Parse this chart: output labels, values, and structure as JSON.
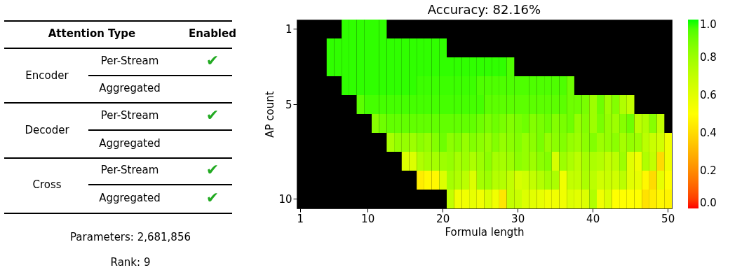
{
  "chart_data": [
    {
      "type": "other",
      "annotations": [
        "Attention Type",
        "Enabled",
        "Encoder",
        "Per-Stream",
        "✔",
        "Aggregated",
        "Decoder",
        "Per-Stream",
        "✔",
        "Aggregated",
        "Cross",
        "Per-Stream",
        "✔",
        "Aggregated",
        "✔",
        "Parameters: 2,681,856",
        "Rank: 9"
      ]
    },
    {
      "type": "heatmap",
      "title": "Accuracy: 82.16%",
      "xlabel": "Formula length",
      "ylabel": "AP count",
      "categories": [
        "1",
        null,
        null,
        null,
        null,
        null,
        null,
        null,
        null,
        "10",
        null,
        null,
        null,
        null,
        null,
        null,
        null,
        null,
        null,
        "20",
        null,
        null,
        null,
        null,
        null,
        null,
        null,
        null,
        null,
        "30",
        null,
        null,
        null,
        null,
        null,
        null,
        null,
        null,
        null,
        "40",
        null,
        null,
        null,
        null,
        null,
        null,
        null,
        null,
        null,
        "50"
      ],
      "y_categories": [
        "1",
        null,
        null,
        null,
        "5",
        null,
        null,
        null,
        null,
        "10"
      ],
      "clim": [
        0,
        1
      ],
      "cticks": [
        {
          "value": 0,
          "label": "0.0"
        },
        {
          "value": 0.2,
          "label": "0.2"
        },
        {
          "value": 0.4,
          "label": "0.4"
        },
        {
          "value": 0.6,
          "label": "0.6"
        },
        {
          "value": 0.8,
          "label": "0.8"
        },
        {
          "value": 1,
          "label": "1.0"
        }
      ],
      "cells": [
        [
          null,
          null,
          null,
          null,
          null,
          null,
          0.98,
          0.98,
          0.98,
          0.98,
          0.98,
          0.98,
          null,
          null,
          null,
          null,
          null,
          null,
          null,
          null,
          null,
          null,
          null,
          null,
          null,
          null,
          null,
          null,
          null,
          null,
          null,
          null,
          null,
          null,
          null,
          null,
          null,
          null,
          null,
          null,
          null,
          null,
          null,
          null,
          null,
          null,
          null,
          null,
          null,
          null
        ],
        [
          null,
          null,
          null,
          null,
          0.98,
          0.98,
          0.98,
          0.98,
          0.98,
          0.98,
          0.98,
          0.98,
          0.98,
          0.98,
          0.98,
          0.98,
          0.98,
          0.98,
          0.98,
          0.98,
          null,
          null,
          null,
          null,
          null,
          null,
          null,
          null,
          null,
          null,
          null,
          null,
          null,
          null,
          null,
          null,
          null,
          null,
          null,
          null,
          null,
          null,
          null,
          null,
          null,
          null,
          null,
          null,
          null,
          null
        ],
        [
          null,
          null,
          null,
          null,
          0.98,
          0.98,
          0.98,
          0.98,
          0.98,
          0.98,
          0.98,
          0.98,
          0.98,
          0.98,
          0.98,
          0.98,
          0.98,
          0.98,
          0.98,
          0.98,
          0.98,
          0.98,
          0.98,
          0.98,
          0.98,
          0.98,
          0.98,
          0.98,
          0.95,
          null,
          null,
          null,
          null,
          null,
          null,
          null,
          null,
          null,
          null,
          null,
          null,
          null,
          null,
          null,
          null,
          null,
          null,
          null,
          null,
          null
        ],
        [
          null,
          null,
          null,
          null,
          null,
          null,
          0.98,
          0.98,
          0.98,
          0.98,
          0.98,
          0.98,
          0.98,
          0.98,
          0.98,
          0.98,
          0.97,
          0.97,
          0.97,
          0.97,
          0.97,
          0.97,
          0.97,
          0.97,
          0.95,
          0.95,
          0.95,
          0.95,
          0.95,
          0.95,
          0.95,
          0.95,
          0.95,
          0.95,
          0.95,
          0.95,
          0.9,
          null,
          null,
          null,
          null,
          null,
          null,
          null,
          null,
          null,
          null,
          null,
          null,
          null
        ],
        [
          null,
          null,
          null,
          null,
          null,
          null,
          null,
          null,
          0.93,
          0.96,
          0.96,
          0.96,
          0.96,
          0.96,
          0.96,
          0.96,
          0.96,
          0.96,
          0.96,
          0.96,
          0.96,
          0.96,
          0.96,
          0.96,
          0.96,
          0.93,
          0.93,
          0.93,
          0.93,
          0.93,
          0.93,
          0.93,
          0.93,
          0.93,
          0.93,
          0.93,
          0.9,
          0.9,
          0.88,
          0.8,
          0.9,
          0.8,
          0.86,
          0.75,
          0.7,
          null,
          null,
          null,
          null,
          null
        ],
        [
          null,
          null,
          null,
          null,
          null,
          null,
          null,
          null,
          null,
          null,
          0.85,
          0.9,
          0.92,
          0.92,
          0.92,
          0.92,
          0.92,
          0.92,
          0.92,
          0.92,
          0.92,
          0.92,
          0.92,
          0.92,
          0.9,
          0.88,
          0.9,
          0.88,
          0.86,
          0.88,
          0.9,
          0.86,
          0.88,
          0.9,
          0.86,
          0.88,
          0.9,
          0.82,
          0.86,
          0.8,
          0.88,
          0.82,
          0.8,
          0.85,
          0.9,
          0.72,
          0.75,
          0.85,
          0.7,
          null
        ],
        [
          null,
          null,
          null,
          null,
          null,
          null,
          null,
          null,
          null,
          null,
          null,
          null,
          0.77,
          0.82,
          0.82,
          0.8,
          0.84,
          0.82,
          0.86,
          0.9,
          0.84,
          0.86,
          0.82,
          0.86,
          0.84,
          0.82,
          0.86,
          0.82,
          0.84,
          0.86,
          0.82,
          0.84,
          0.88,
          0.82,
          0.84,
          0.86,
          0.82,
          0.8,
          0.84,
          0.86,
          0.8,
          0.82,
          0.84,
          0.78,
          0.82,
          0.8,
          0.72,
          0.68,
          0.65,
          0.55
        ],
        [
          null,
          null,
          null,
          null,
          null,
          null,
          null,
          null,
          null,
          null,
          null,
          null,
          null,
          null,
          0.62,
          0.62,
          0.75,
          0.78,
          0.78,
          0.8,
          0.82,
          0.78,
          0.8,
          0.76,
          0.8,
          0.84,
          0.78,
          0.78,
          0.8,
          0.84,
          0.82,
          0.8,
          0.84,
          0.86,
          0.64,
          0.8,
          0.76,
          0.72,
          0.78,
          0.76,
          0.74,
          0.7,
          0.72,
          0.8,
          0.6,
          0.55,
          0.75,
          0.7,
          0.4,
          0.55
        ],
        [
          null,
          null,
          null,
          null,
          null,
          null,
          null,
          null,
          null,
          null,
          null,
          null,
          null,
          null,
          null,
          null,
          0.45,
          0.48,
          0.48,
          0.62,
          0.78,
          0.75,
          0.72,
          0.62,
          0.78,
          0.8,
          0.74,
          0.74,
          0.7,
          0.64,
          0.66,
          0.7,
          0.74,
          0.78,
          0.76,
          0.55,
          0.7,
          0.7,
          0.76,
          0.72,
          0.66,
          0.68,
          0.66,
          0.72,
          0.6,
          0.58,
          0.48,
          0.4,
          0.58,
          0.5
        ],
        [
          null,
          null,
          null,
          null,
          null,
          null,
          null,
          null,
          null,
          null,
          null,
          null,
          null,
          null,
          null,
          null,
          null,
          null,
          null,
          null,
          0.7,
          0.55,
          0.55,
          0.58,
          0.55,
          0.62,
          0.55,
          0.43,
          0.7,
          0.68,
          0.62,
          0.6,
          0.58,
          0.55,
          0.55,
          0.55,
          0.62,
          0.6,
          0.62,
          0.75,
          0.55,
          0.62,
          0.5,
          0.5,
          0.5,
          0.5,
          0.42,
          0.45,
          0.48,
          0.47
        ]
      ]
    }
  ]
}
